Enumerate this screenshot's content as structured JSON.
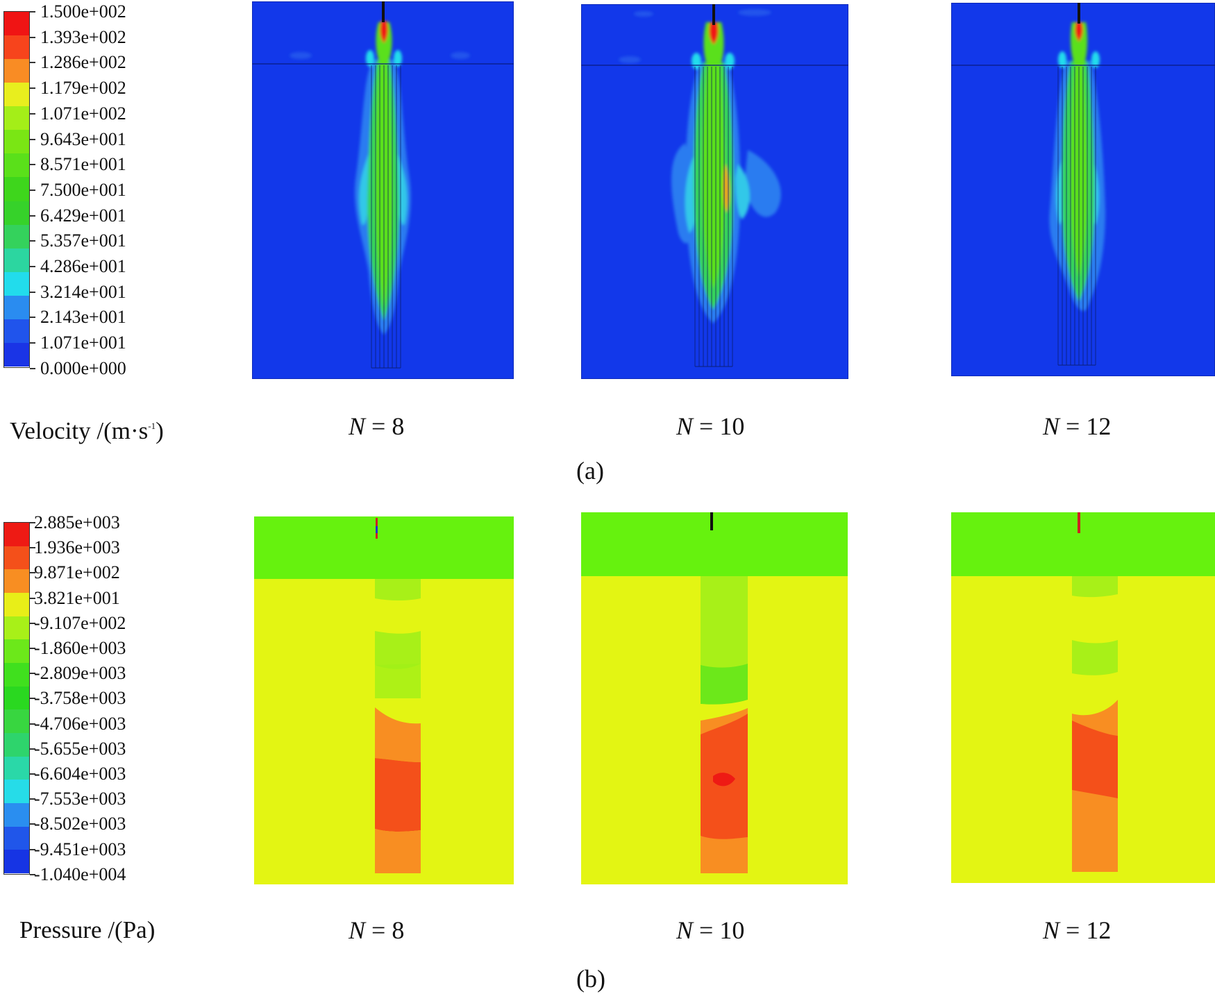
{
  "colors": {
    "velocity_bg": "#1238ea",
    "pressure_top": "#66f20e",
    "pressure_bg": "#e3f513"
  },
  "velocity_legend": {
    "title": "Velocity /(m·s",
    "unit_exponent": "-1",
    "title_close": ")",
    "labels": [
      "1.500e+002",
      "1.393e+002",
      "1.286e+002",
      "1.179e+002",
      "1.071e+002",
      "9.643e+001",
      "8.571e+001",
      "7.500e+001",
      "6.429e+001",
      "5.357e+001",
      "4.286e+001",
      "3.214e+001",
      "2.143e+001",
      "1.071e+001",
      "0.000e+000"
    ],
    "colors": [
      "#f01414",
      "#f7441c",
      "#f98c24",
      "#e8ee1e",
      "#a4ee18",
      "#7ae614",
      "#5ae01a",
      "#3ed61c",
      "#36d22a",
      "#34d25c",
      "#2cd6a0",
      "#22dcec",
      "#2a8cf0",
      "#2054ec",
      "#1a34e6"
    ]
  },
  "pressure_legend": {
    "title": "Pressure /(Pa)",
    "labels": [
      "2.885e+003",
      "1.936e+003",
      "9.871e+002",
      "3.821e+001",
      "-9.107e+002",
      "-1.860e+003",
      "-2.809e+003",
      "-3.758e+003",
      "-4.706e+003",
      "-5.655e+003",
      "-6.604e+003",
      "-7.553e+003",
      "-8.502e+003",
      "-9.451e+003",
      "-1.040e+004"
    ],
    "colors": [
      "#ee1a14",
      "#f4501a",
      "#f88e22",
      "#e8ee18",
      "#a8f018",
      "#6ce81a",
      "#40e01e",
      "#2ad820",
      "#38d640",
      "#2ed46c",
      "#2ad8a8",
      "#26dce8",
      "#2a8ef0",
      "#2056ea",
      "#1634e4"
    ]
  },
  "panels": {
    "cases": [
      {
        "var": "N",
        "eq": " = ",
        "value": "8"
      },
      {
        "var": "N",
        "eq": " = ",
        "value": "10"
      },
      {
        "var": "N",
        "eq": " = ",
        "value": "12"
      }
    ]
  },
  "sub_labels": {
    "a": "(a)",
    "b": "(b)"
  }
}
